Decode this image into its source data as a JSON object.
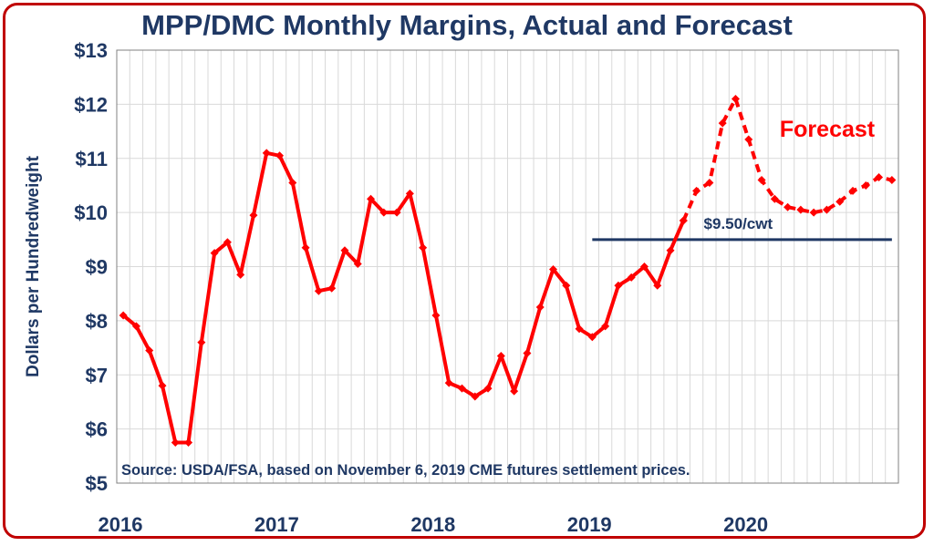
{
  "chart_data": {
    "type": "line",
    "title": "MPP/DMC Monthly Margins, Actual and Forecast",
    "ylabel": "Dollars per Hundredweight",
    "xlabel": "",
    "ylim": [
      5,
      13
    ],
    "yticks": [
      {
        "value": 13,
        "label": "$13"
      },
      {
        "value": 12,
        "label": "$12"
      },
      {
        "value": 11,
        "label": "$11"
      },
      {
        "value": 10,
        "label": "$10"
      },
      {
        "value": 9,
        "label": "$9"
      },
      {
        "value": 8,
        "label": "$8"
      },
      {
        "value": 7,
        "label": "$7"
      },
      {
        "value": 6,
        "label": "$6"
      },
      {
        "value": 5,
        "label": "$5"
      }
    ],
    "xticks": [
      "2016",
      "2017",
      "2018",
      "2019",
      "2020"
    ],
    "grid": true,
    "series": [
      {
        "kind": "actual",
        "color": "#ff0000",
        "start_month": 0,
        "values": [
          8.1,
          7.9,
          7.45,
          6.8,
          5.75,
          5.75,
          7.6,
          9.25,
          9.45,
          8.85,
          9.95,
          11.1,
          11.05,
          10.55,
          9.35,
          8.55,
          8.6,
          9.3,
          9.05,
          10.25,
          10.0,
          10.0,
          10.35,
          9.35,
          8.1,
          6.85,
          6.75,
          6.6,
          6.75,
          7.35,
          6.7,
          7.4,
          8.25,
          8.95,
          8.65,
          7.85,
          7.7,
          7.9,
          8.65,
          8.8,
          9.0,
          8.65,
          9.3,
          9.85
        ]
      },
      {
        "kind": "forecast",
        "name": "Forecast",
        "color": "#ff0000",
        "start_month": 43,
        "values": [
          9.85,
          10.4,
          10.55,
          11.65,
          12.1,
          11.35,
          10.6,
          10.25,
          10.1,
          10.05,
          10.0,
          10.05,
          10.2,
          10.4,
          10.5,
          10.65,
          10.6
        ]
      }
    ],
    "reference_line": {
      "value": 9.5,
      "label": "$9.50/cwt",
      "start_month": 36,
      "end_month": 59,
      "color": "#1f3864"
    },
    "annotations": [
      {
        "text": "Forecast",
        "color": "#ff0000"
      },
      {
        "text": "Source:  USDA/FSA, based on November 6, 2019 CME futures settlement prices."
      }
    ],
    "colors": {
      "title": "#1f3864",
      "border": "#c00000",
      "grid": "#d9d9d9"
    }
  }
}
